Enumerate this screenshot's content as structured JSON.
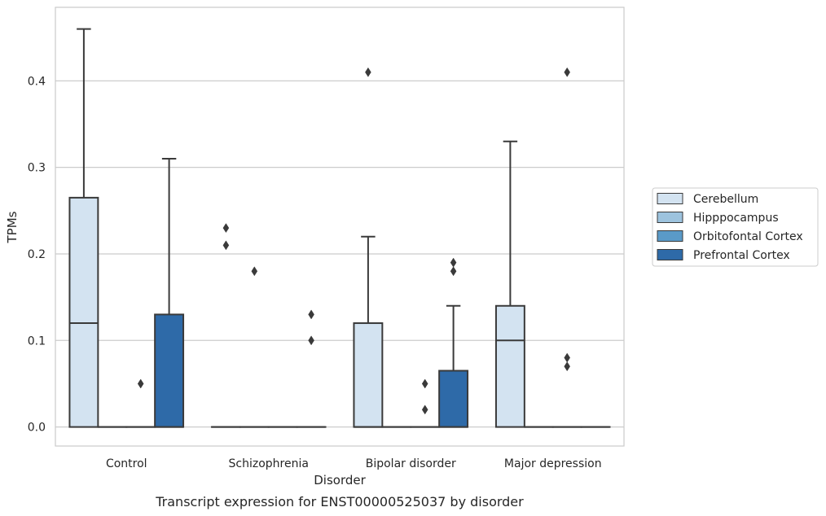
{
  "caption": "Transcript expression for ENST00000525037 by disorder",
  "chart_data": {
    "type": "box",
    "title": "",
    "xlabel": "Disorder",
    "ylabel": "TPMs",
    "ylim": [
      -0.022,
      0.485
    ],
    "yticks": [
      0.0,
      0.1,
      0.2,
      0.3,
      0.4
    ],
    "ytick_labels": [
      "0.0",
      "0.1",
      "0.2",
      "0.3",
      "0.4"
    ],
    "grid": "horizontal",
    "legend_position": "right",
    "categories": [
      "Control",
      "Schizophrenia",
      "Bipolar disorder",
      "Major depression"
    ],
    "series": [
      {
        "name": "Cerebellum",
        "color": "#d3e3f1",
        "boxes": [
          {
            "category": "Control",
            "q1": 0.0,
            "median": 0.12,
            "q3": 0.265,
            "whisker_low": 0.0,
            "whisker_high": 0.46,
            "outliers": []
          },
          {
            "category": "Schizophrenia",
            "q1": 0.0,
            "median": 0.0,
            "q3": 0.0,
            "whisker_low": 0.0,
            "whisker_high": 0.0,
            "outliers": [
              0.23,
              0.21
            ]
          },
          {
            "category": "Bipolar disorder",
            "q1": 0.0,
            "median": 0.0,
            "q3": 0.12,
            "whisker_low": 0.0,
            "whisker_high": 0.22,
            "outliers": [
              0.41
            ]
          },
          {
            "category": "Major depression",
            "q1": 0.0,
            "median": 0.1,
            "q3": 0.14,
            "whisker_low": 0.0,
            "whisker_high": 0.33,
            "outliers": []
          }
        ]
      },
      {
        "name": "Hipppocampus",
        "color": "#9dc3de",
        "boxes": [
          {
            "category": "Control",
            "q1": 0.0,
            "median": 0.0,
            "q3": 0.0,
            "whisker_low": 0.0,
            "whisker_high": 0.0,
            "outliers": []
          },
          {
            "category": "Schizophrenia",
            "q1": 0.0,
            "median": 0.0,
            "q3": 0.0,
            "whisker_low": 0.0,
            "whisker_high": 0.0,
            "outliers": [
              0.18
            ]
          },
          {
            "category": "Bipolar disorder",
            "q1": 0.0,
            "median": 0.0,
            "q3": 0.0,
            "whisker_low": 0.0,
            "whisker_high": 0.0,
            "outliers": []
          },
          {
            "category": "Major depression",
            "q1": 0.0,
            "median": 0.0,
            "q3": 0.0,
            "whisker_low": 0.0,
            "whisker_high": 0.0,
            "outliers": []
          }
        ]
      },
      {
        "name": "Orbitofontal Cortex",
        "color": "#5a9ac8",
        "boxes": [
          {
            "category": "Control",
            "q1": 0.0,
            "median": 0.0,
            "q3": 0.0,
            "whisker_low": 0.0,
            "whisker_high": 0.0,
            "outliers": [
              0.05
            ]
          },
          {
            "category": "Schizophrenia",
            "q1": 0.0,
            "median": 0.0,
            "q3": 0.0,
            "whisker_low": 0.0,
            "whisker_high": 0.0,
            "outliers": []
          },
          {
            "category": "Bipolar disorder",
            "q1": 0.0,
            "median": 0.0,
            "q3": 0.0,
            "whisker_low": 0.0,
            "whisker_high": 0.0,
            "outliers": [
              0.05,
              0.02
            ]
          },
          {
            "category": "Major depression",
            "q1": 0.0,
            "median": 0.0,
            "q3": 0.0,
            "whisker_low": 0.0,
            "whisker_high": 0.0,
            "outliers": [
              0.41,
              0.08,
              0.07
            ]
          }
        ]
      },
      {
        "name": "Prefrontal Cortex",
        "color": "#2e6aa8",
        "boxes": [
          {
            "category": "Control",
            "q1": 0.0,
            "median": 0.0,
            "q3": 0.13,
            "whisker_low": 0.0,
            "whisker_high": 0.31,
            "outliers": []
          },
          {
            "category": "Schizophrenia",
            "q1": 0.0,
            "median": 0.0,
            "q3": 0.0,
            "whisker_low": 0.0,
            "whisker_high": 0.0,
            "outliers": [
              0.13,
              0.1
            ]
          },
          {
            "category": "Bipolar disorder",
            "q1": 0.0,
            "median": 0.0,
            "q3": 0.065,
            "whisker_low": 0.0,
            "whisker_high": 0.14,
            "outliers": [
              0.19,
              0.18
            ]
          },
          {
            "category": "Major depression",
            "q1": 0.0,
            "median": 0.0,
            "q3": 0.0,
            "whisker_low": 0.0,
            "whisker_high": 0.0,
            "outliers": []
          }
        ]
      }
    ]
  },
  "colors": {
    "grid": "#cccccc",
    "frame": "#cccccc",
    "edge": "#3a3a3a",
    "text": "#262626"
  }
}
